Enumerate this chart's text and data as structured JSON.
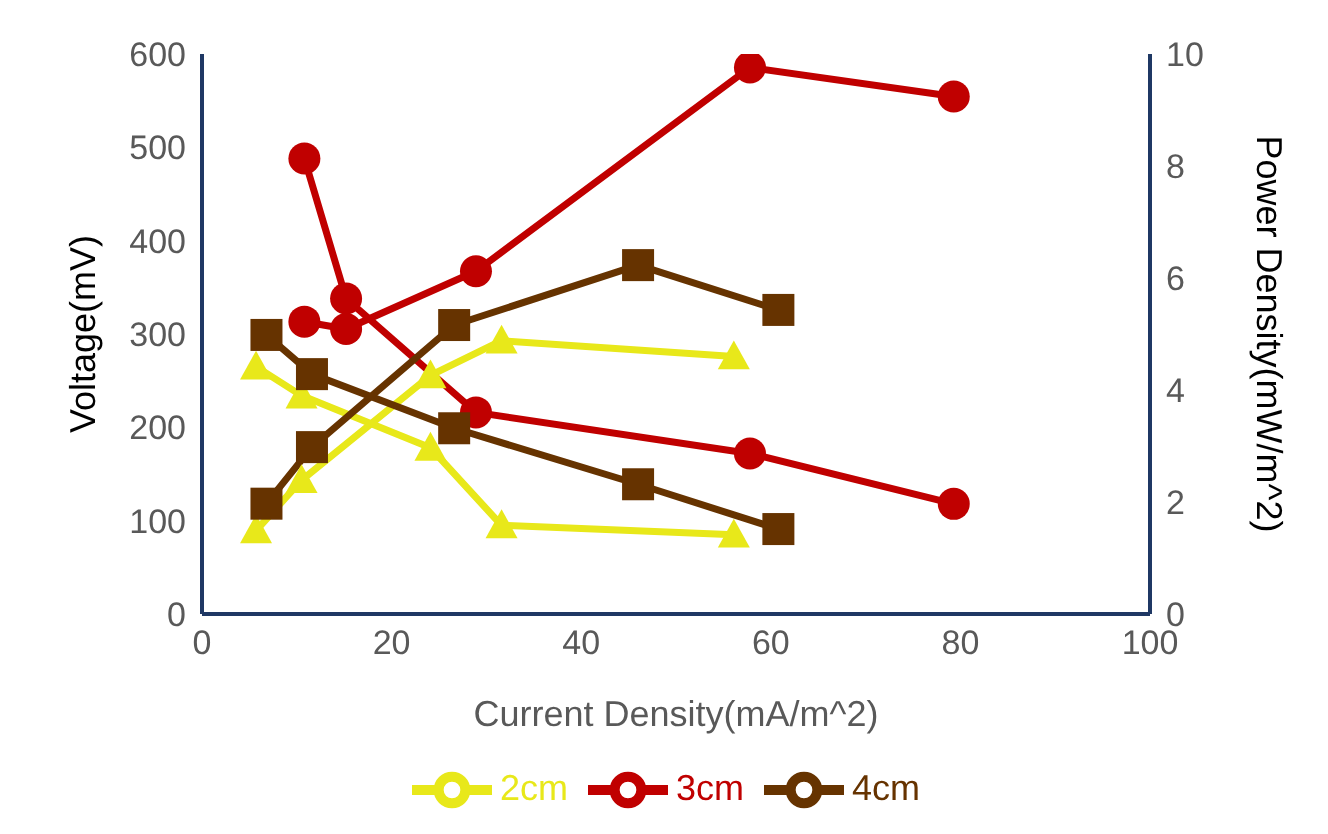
{
  "chart_data": {
    "type": "line",
    "xlabel": "Current Density(mA/m^2)",
    "ylabel": "Voltage(mV)",
    "y2label": "Power Density(mW/m^2)",
    "xlim": [
      0,
      100
    ],
    "xticks": [
      0,
      20,
      40,
      60,
      80,
      100
    ],
    "ylim": [
      0,
      600
    ],
    "yticks": [
      0,
      100,
      200,
      300,
      400,
      500,
      600
    ],
    "y2lim": [
      0,
      10
    ],
    "y2ticks": [
      0,
      2,
      4,
      6,
      8,
      10
    ],
    "grid": false,
    "legend": "bottom",
    "series": [
      {
        "name": "2cm",
        "color": "#e8e81a",
        "marker": "triangle",
        "x": [
          5.7,
          10.5,
          24.1,
          31.6,
          56.1
        ],
        "values": [
          265,
          234,
          178,
          95,
          85
        ]
      },
      {
        "color": "#e8e81a",
        "marker": "triangle",
        "axis": "y2",
        "x": [
          5.7,
          10.5,
          24.1,
          31.6,
          56.1
        ],
        "values": [
          1.49,
          2.39,
          4.26,
          4.88,
          4.6
        ]
      },
      {
        "name": "3cm",
        "color": "#c00000",
        "marker": "circle",
        "x": [
          10.8,
          15.2,
          28.9,
          57.8,
          79.3
        ],
        "values": [
          488,
          338,
          216,
          172,
          118
        ]
      },
      {
        "color": "#c00000",
        "marker": "circle",
        "axis": "y2",
        "x": [
          10.8,
          15.2,
          28.9,
          57.8,
          79.3
        ],
        "values": [
          5.22,
          5.09,
          6.12,
          9.76,
          9.24
        ]
      },
      {
        "name": "4cm",
        "color": "#663300",
        "marker": "square",
        "x": [
          6.8,
          11.6,
          26.6,
          46.0,
          60.8
        ],
        "values": [
          299,
          257,
          199,
          139,
          91
        ]
      },
      {
        "color": "#663300",
        "marker": "square",
        "axis": "y2",
        "x": [
          6.8,
          11.6,
          26.6,
          46.0,
          60.8
        ],
        "values": [
          1.97,
          2.98,
          5.16,
          6.23,
          5.43
        ]
      }
    ]
  }
}
